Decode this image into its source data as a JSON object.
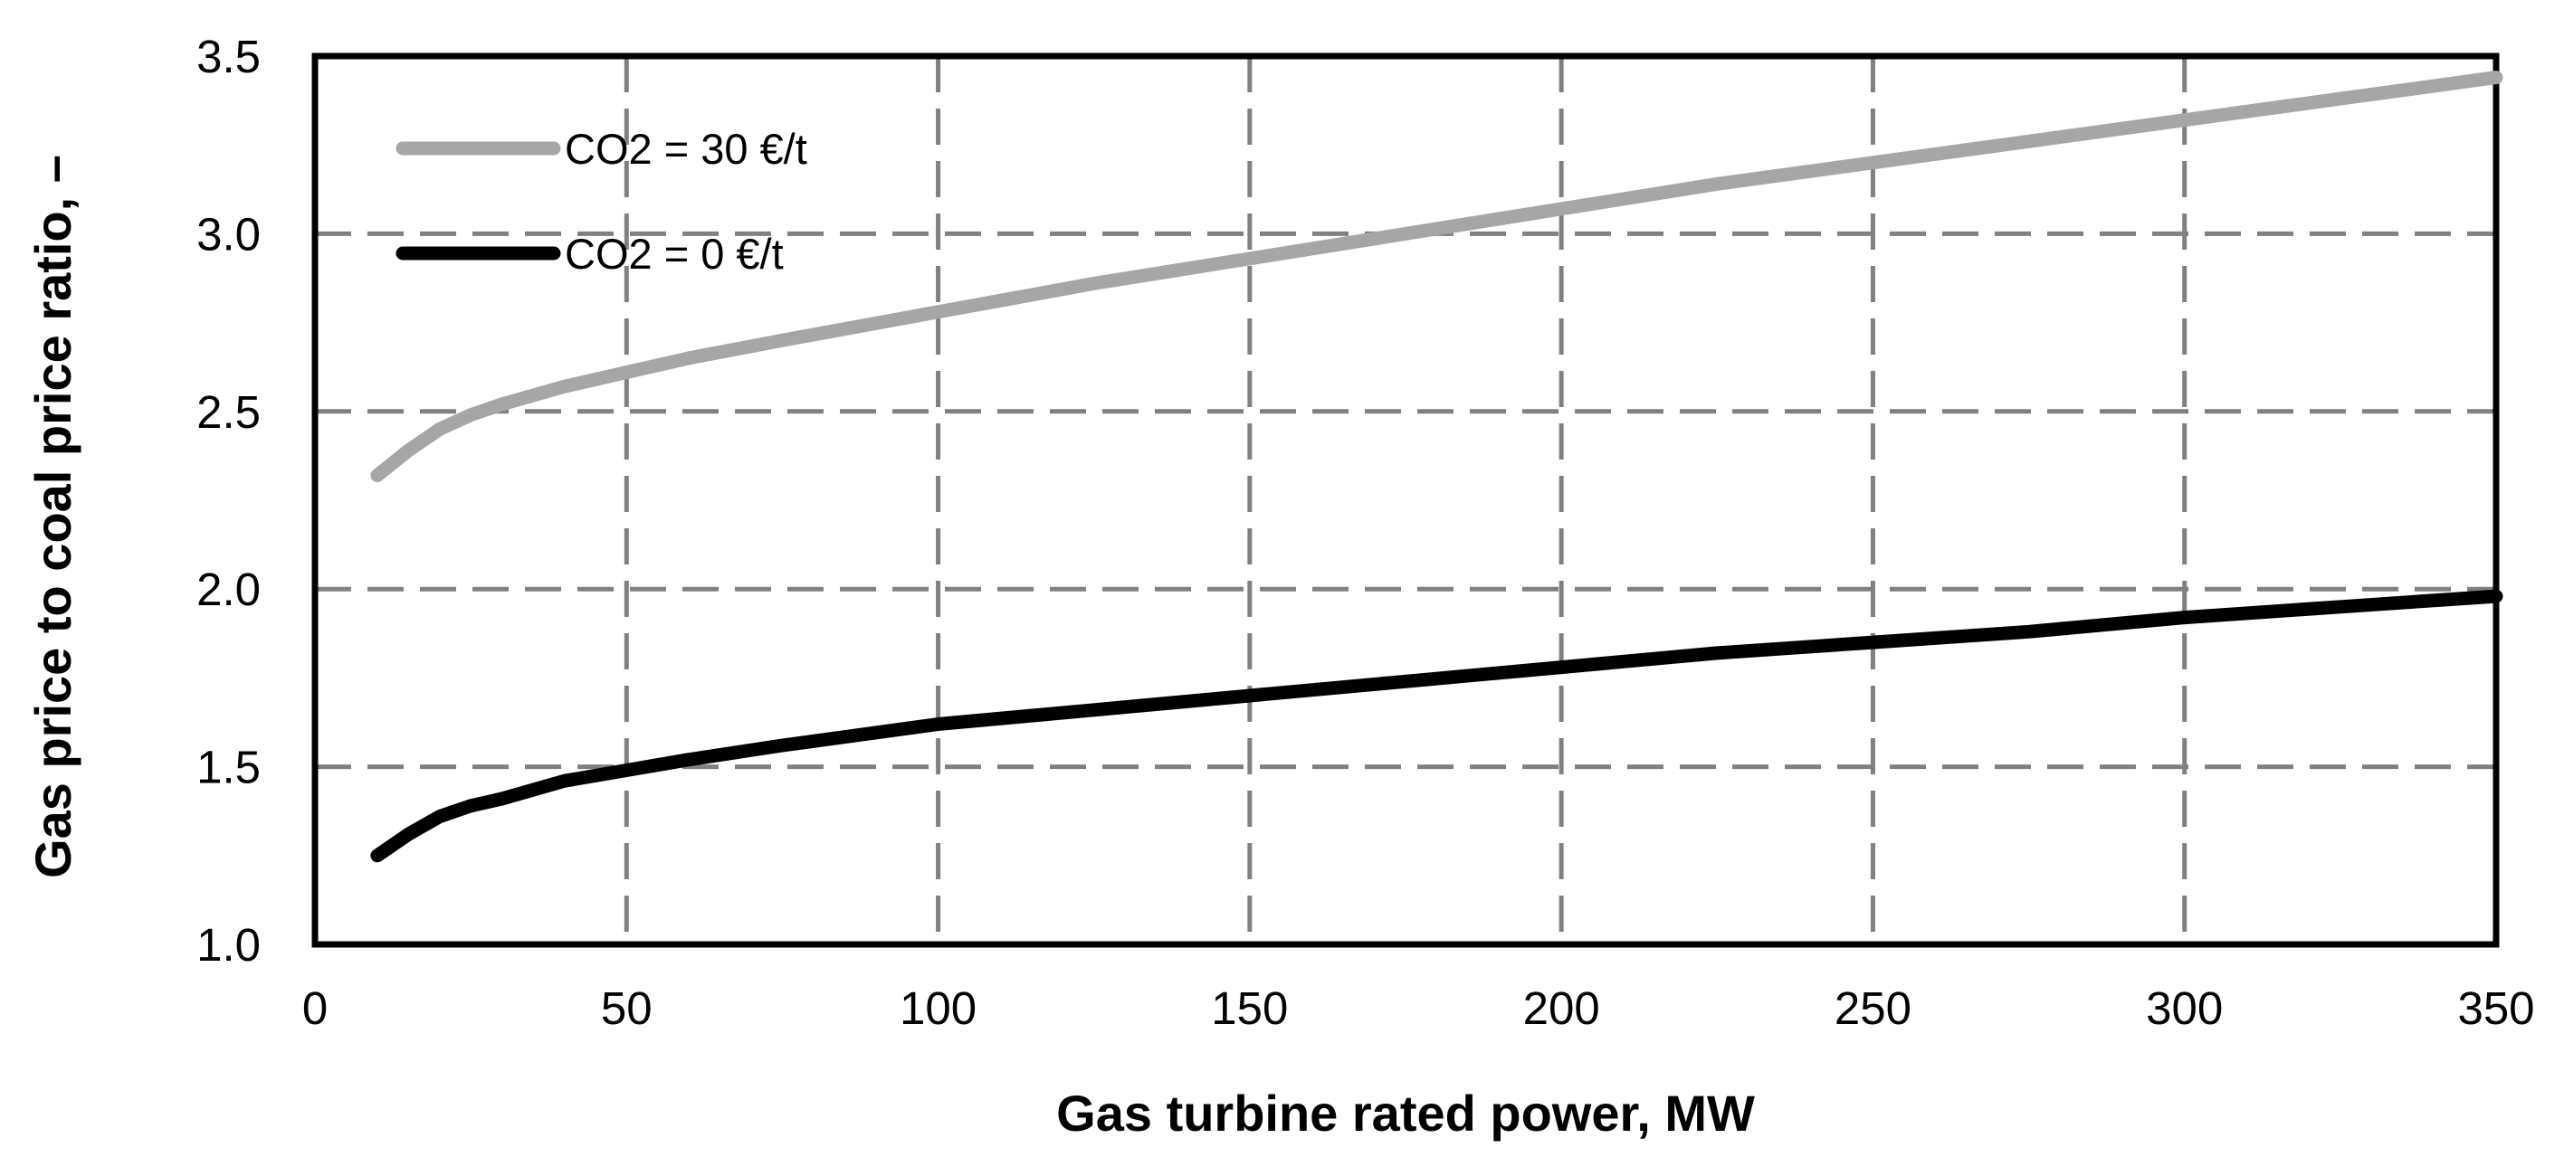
{
  "chart_data": {
    "type": "line",
    "title": "",
    "xlabel": "Gas turbine rated power, MW",
    "ylabel": "Gas price to coal price ratio, –",
    "xlim": [
      0,
      350
    ],
    "ylim": [
      1.0,
      3.5
    ],
    "xticks": [
      0,
      50,
      100,
      150,
      200,
      250,
      300,
      350
    ],
    "yticks": [
      1.0,
      1.5,
      2.0,
      2.5,
      3.0,
      3.5
    ],
    "xtick_labels": [
      "0",
      "50",
      "100",
      "150",
      "200",
      "250",
      "300",
      "350"
    ],
    "ytick_labels": [
      "1.0",
      "1.5",
      "2.0",
      "2.5",
      "3.0",
      "3.5"
    ],
    "grid": true,
    "legend_position": "top-left",
    "series": [
      {
        "name": "CO2 = 30 €/t",
        "color": "#a6a6a6",
        "x": [
          10,
          15,
          20,
          25,
          30,
          40,
          50,
          60,
          75,
          100,
          125,
          150,
          175,
          200,
          225,
          250,
          275,
          300,
          325,
          350
        ],
        "y": [
          2.32,
          2.39,
          2.45,
          2.49,
          2.52,
          2.57,
          2.61,
          2.65,
          2.7,
          2.78,
          2.86,
          2.93,
          3.0,
          3.07,
          3.14,
          3.2,
          3.26,
          3.32,
          3.38,
          3.44
        ]
      },
      {
        "name": "CO2 = 0 €/t",
        "color": "#000000",
        "x": [
          10,
          15,
          20,
          25,
          30,
          40,
          50,
          60,
          75,
          100,
          125,
          150,
          175,
          200,
          225,
          250,
          275,
          300,
          325,
          350
        ],
        "y": [
          1.25,
          1.31,
          1.36,
          1.39,
          1.41,
          1.46,
          1.49,
          1.52,
          1.56,
          1.62,
          1.66,
          1.7,
          1.74,
          1.78,
          1.82,
          1.85,
          1.88,
          1.92,
          1.95,
          1.98
        ]
      }
    ]
  }
}
